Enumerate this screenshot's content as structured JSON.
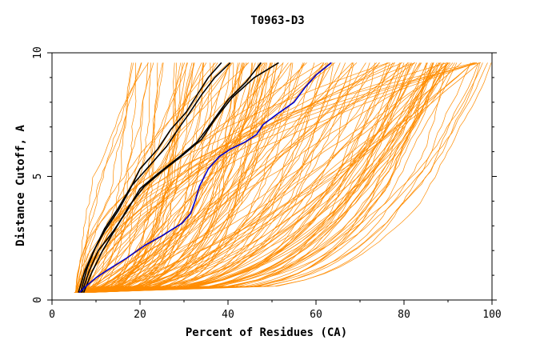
{
  "chart_data": {
    "type": "line",
    "title": "T0963-D3",
    "xlabel": "Percent of Residues (CA)",
    "ylabel": "Distance Cutoff, A",
    "xlim": [
      0,
      100
    ],
    "ylim": [
      0,
      10
    ],
    "x_ticks": [
      "0",
      "20",
      "40",
      "60",
      "80",
      "100"
    ],
    "y_ticks": [
      "0",
      "5",
      "10"
    ],
    "grid": false,
    "legend": "none",
    "colors": {
      "background_models": "#ff8c00",
      "highlight_models": "#000000",
      "reference_model": "#0000cd"
    },
    "highlight_series": [
      {
        "color": "#000000",
        "points": [
          [
            6.8,
            0.3
          ],
          [
            8.5,
            1.2
          ],
          [
            10.5,
            2.0
          ],
          [
            14,
            2.8
          ],
          [
            17,
            3.6
          ],
          [
            20,
            4.5
          ],
          [
            24,
            5.1
          ],
          [
            29,
            5.8
          ],
          [
            33,
            6.4
          ],
          [
            36,
            7.1
          ],
          [
            40,
            8.1
          ],
          [
            44,
            8.8
          ],
          [
            47.5,
            9.6
          ]
        ]
      },
      {
        "color": "#000000",
        "points": [
          [
            7.2,
            0.3
          ],
          [
            9,
            1.1
          ],
          [
            11.5,
            2.0
          ],
          [
            14.5,
            2.9
          ],
          [
            17.5,
            3.8
          ],
          [
            21,
            4.6
          ],
          [
            25,
            5.2
          ],
          [
            30,
            5.9
          ],
          [
            34,
            6.5
          ],
          [
            37,
            7.3
          ],
          [
            41,
            8.2
          ],
          [
            46,
            9.0
          ],
          [
            51.5,
            9.6
          ]
        ]
      },
      {
        "color": "#000000",
        "points": [
          [
            6.5,
            0.3
          ],
          [
            8,
            1.3
          ],
          [
            9.8,
            2.1
          ],
          [
            12,
            2.9
          ],
          [
            15,
            3.7
          ],
          [
            18,
            4.6
          ],
          [
            22,
            5.4
          ],
          [
            26,
            6.2
          ],
          [
            29,
            7.0
          ],
          [
            31,
            7.5
          ],
          [
            34,
            8.3
          ],
          [
            37,
            9.0
          ],
          [
            40.5,
            9.6
          ]
        ]
      },
      {
        "color": "#000000",
        "points": [
          [
            6,
            0.3
          ],
          [
            7.5,
            1.2
          ],
          [
            9.5,
            2.0
          ],
          [
            12,
            2.8
          ],
          [
            15,
            3.6
          ],
          [
            17.5,
            4.4
          ],
          [
            20,
            5.3
          ],
          [
            24,
            6.1
          ],
          [
            27,
            6.9
          ],
          [
            30.5,
            7.6
          ],
          [
            33,
            8.3
          ],
          [
            35.5,
            9.0
          ],
          [
            38.5,
            9.6
          ]
        ]
      }
    ],
    "reference_series": {
      "color": "#0000cd",
      "points": [
        [
          6.2,
          0.3
        ],
        [
          8,
          0.6
        ],
        [
          10,
          0.9
        ],
        [
          12.5,
          1.2
        ],
        [
          17,
          1.7
        ],
        [
          21,
          2.2
        ],
        [
          25,
          2.6
        ],
        [
          29.5,
          3.1
        ],
        [
          31.5,
          3.5
        ],
        [
          32.5,
          4.0
        ],
        [
          33.5,
          4.6
        ],
        [
          35.5,
          5.3
        ],
        [
          38,
          5.8
        ],
        [
          40.5,
          6.1
        ],
        [
          44,
          6.4
        ],
        [
          46.5,
          6.7
        ],
        [
          48,
          7.1
        ],
        [
          51,
          7.5
        ],
        [
          55,
          8.0
        ],
        [
          57.5,
          8.6
        ],
        [
          60,
          9.1
        ],
        [
          63.5,
          9.6
        ]
      ]
    }
  }
}
